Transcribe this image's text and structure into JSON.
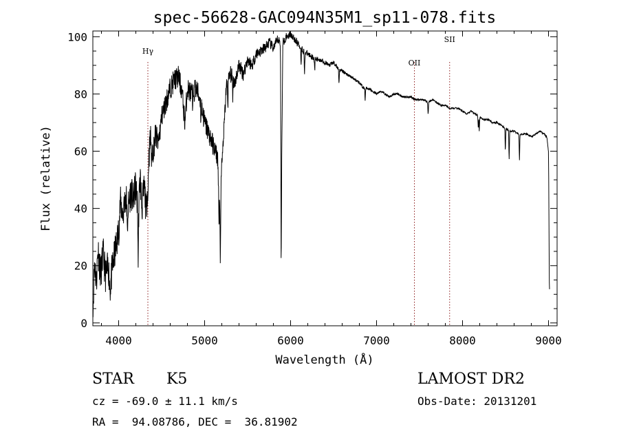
{
  "chart_data": {
    "type": "line",
    "title": "spec-56628-GAC094N35M1_sp11-078.fits",
    "xlabel": "Wavelength (Å)",
    "ylabel": "Flux (relative)",
    "xlim": [
      3700,
      9100
    ],
    "ylim": [
      -1,
      102
    ],
    "xticks": [
      4000,
      5000,
      6000,
      7000,
      8000,
      9000
    ],
    "yticks": [
      0,
      20,
      40,
      60,
      80,
      100
    ],
    "grid": false,
    "line_color": "#000000",
    "marker_color": "#8b1a1a",
    "lines": [
      {
        "label": "Hγ",
        "x": 4340
      },
      {
        "label": "OII",
        "x": 7440
      },
      {
        "label": "SII",
        "x": 7850
      }
    ],
    "anchors": [
      [
        3705,
        8
      ],
      [
        3720,
        22
      ],
      [
        3740,
        14
      ],
      [
        3760,
        26
      ],
      [
        3790,
        17
      ],
      [
        3820,
        24
      ],
      [
        3850,
        16
      ],
      [
        3880,
        20
      ],
      [
        3900,
        12
      ],
      [
        3930,
        20
      ],
      [
        3960,
        25
      ],
      [
        4000,
        32
      ],
      [
        4020,
        42
      ],
      [
        4050,
        38
      ],
      [
        4080,
        44
      ],
      [
        4110,
        40
      ],
      [
        4140,
        46
      ],
      [
        4170,
        43
      ],
      [
        4200,
        48
      ],
      [
        4230,
        36
      ],
      [
        4250,
        52
      ],
      [
        4270,
        40
      ],
      [
        4300,
        48
      ],
      [
        4320,
        38
      ],
      [
        4345,
        55
      ],
      [
        4370,
        65
      ],
      [
        4400,
        60
      ],
      [
        4430,
        66
      ],
      [
        4460,
        62
      ],
      [
        4500,
        72
      ],
      [
        4550,
        77
      ],
      [
        4600,
        82
      ],
      [
        4650,
        85
      ],
      [
        4700,
        86
      ],
      [
        4740,
        80
      ],
      [
        4770,
        70
      ],
      [
        4800,
        82
      ],
      [
        4850,
        80
      ],
      [
        4900,
        82
      ],
      [
        4950,
        78
      ],
      [
        5000,
        70
      ],
      [
        5050,
        66
      ],
      [
        5100,
        62
      ],
      [
        5150,
        58
      ],
      [
        5180,
        38
      ],
      [
        5200,
        55
      ],
      [
        5230,
        70
      ],
      [
        5250,
        82
      ],
      [
        5300,
        87
      ],
      [
        5350,
        84
      ],
      [
        5400,
        90
      ],
      [
        5450,
        87
      ],
      [
        5500,
        92
      ],
      [
        5550,
        90
      ],
      [
        5600,
        94
      ],
      [
        5650,
        95
      ],
      [
        5700,
        96
      ],
      [
        5750,
        98
      ],
      [
        5800,
        96
      ],
      [
        5850,
        99
      ],
      [
        5880,
        98
      ],
      [
        5895,
        53
      ],
      [
        5910,
        98
      ],
      [
        5950,
        100
      ],
      [
        6000,
        101
      ],
      [
        6050,
        99
      ],
      [
        6100,
        97
      ],
      [
        6150,
        95
      ],
      [
        6200,
        94
      ],
      [
        6250,
        93
      ],
      [
        6300,
        92
      ],
      [
        6350,
        92
      ],
      [
        6400,
        91
      ],
      [
        6450,
        90
      ],
      [
        6500,
        91
      ],
      [
        6550,
        89
      ],
      [
        6600,
        88
      ],
      [
        6650,
        87
      ],
      [
        6700,
        86
      ],
      [
        6750,
        85
      ],
      [
        6800,
        84
      ],
      [
        6850,
        82
      ],
      [
        6900,
        82
      ],
      [
        6950,
        81
      ],
      [
        7000,
        80
      ],
      [
        7050,
        81
      ],
      [
        7100,
        80
      ],
      [
        7150,
        79
      ],
      [
        7200,
        80
      ],
      [
        7250,
        80
      ],
      [
        7300,
        79
      ],
      [
        7350,
        79
      ],
      [
        7400,
        79
      ],
      [
        7450,
        78
      ],
      [
        7500,
        78
      ],
      [
        7550,
        78
      ],
      [
        7600,
        77
      ],
      [
        7650,
        78
      ],
      [
        7700,
        77
      ],
      [
        7750,
        76
      ],
      [
        7800,
        76
      ],
      [
        7850,
        75
      ],
      [
        7900,
        75
      ],
      [
        7950,
        75
      ],
      [
        8000,
        74
      ],
      [
        8050,
        73
      ],
      [
        8100,
        74
      ],
      [
        8150,
        73
      ],
      [
        8200,
        72
      ],
      [
        8250,
        71
      ],
      [
        8300,
        71
      ],
      [
        8350,
        70
      ],
      [
        8400,
        70
      ],
      [
        8450,
        69
      ],
      [
        8500,
        68
      ],
      [
        8550,
        67
      ],
      [
        8600,
        67
      ],
      [
        8650,
        66
      ],
      [
        8700,
        66
      ],
      [
        8750,
        66
      ],
      [
        8800,
        65
      ],
      [
        8850,
        66
      ],
      [
        8900,
        67
      ],
      [
        8950,
        66
      ],
      [
        8980,
        65
      ],
      [
        9000,
        60
      ],
      [
        9010,
        12
      ]
    ],
    "absorption": [
      [
        4101,
        12
      ],
      [
        4227,
        16
      ],
      [
        4340,
        10
      ],
      [
        4384,
        8
      ],
      [
        4861,
        6
      ],
      [
        4957,
        6
      ],
      [
        5167,
        14
      ],
      [
        5183,
        18
      ],
      [
        5270,
        8
      ],
      [
        5328,
        6
      ],
      [
        5890,
        47
      ],
      [
        6122,
        5
      ],
      [
        6162,
        8
      ],
      [
        6280,
        4
      ],
      [
        6563,
        5
      ],
      [
        6867,
        4
      ],
      [
        7600,
        4
      ],
      [
        8183,
        4
      ],
      [
        8195,
        5
      ],
      [
        8498,
        8
      ],
      [
        8542,
        10
      ],
      [
        8662,
        9
      ]
    ],
    "noise_scale": [
      [
        3700,
        6
      ],
      [
        4300,
        6
      ],
      [
        4500,
        4
      ],
      [
        5000,
        4
      ],
      [
        5300,
        3
      ],
      [
        5600,
        2.2
      ],
      [
        6000,
        1.4
      ],
      [
        6500,
        0.7
      ],
      [
        7000,
        0.4
      ],
      [
        8000,
        0.3
      ],
      [
        9000,
        0.3
      ]
    ]
  },
  "info": {
    "object_class": "STAR",
    "subclass": "K5",
    "survey": "LAMOST DR2",
    "redshift": "cz = -69.0 ± 11.1 km/s",
    "obs_date": "Obs-Date: 20131201",
    "coords": "RA =  94.08786, DEC =  36.81902"
  }
}
